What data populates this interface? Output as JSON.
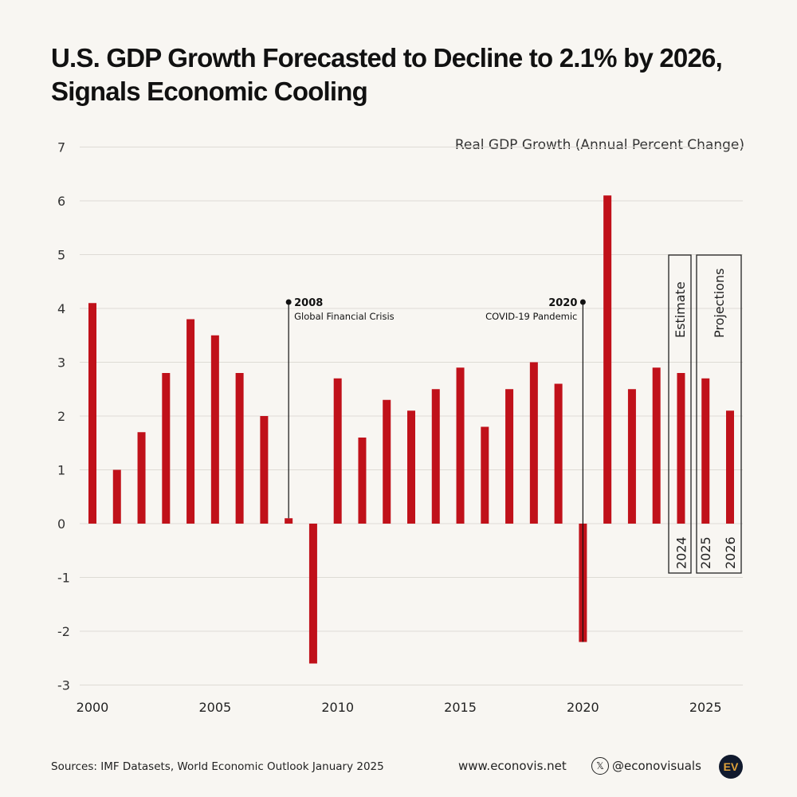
{
  "chart_data": {
    "type": "bar",
    "title": "U.S. GDP Growth Forecasted to Decline to 2.1% by 2026, Signals Economic Cooling",
    "subtitle": "Real GDP Growth (Annual Percent Change)",
    "categories": [
      2000,
      2001,
      2002,
      2003,
      2004,
      2005,
      2006,
      2007,
      2008,
      2009,
      2010,
      2011,
      2012,
      2013,
      2014,
      2015,
      2016,
      2017,
      2018,
      2019,
      2020,
      2021,
      2022,
      2023,
      2024,
      2025,
      2026
    ],
    "values": [
      4.1,
      1.0,
      1.7,
      2.8,
      3.8,
      3.5,
      2.8,
      2.0,
      0.1,
      -2.6,
      2.7,
      1.6,
      2.3,
      2.1,
      2.5,
      2.9,
      1.8,
      2.5,
      3.0,
      2.6,
      -2.2,
      6.1,
      2.5,
      2.9,
      2.8,
      2.7,
      2.1
    ],
    "ylim": [
      -3,
      7
    ],
    "yticks": [
      7,
      6,
      5,
      4,
      3,
      2,
      1,
      0,
      -1,
      -2,
      -3
    ],
    "xticks": [
      2000,
      2005,
      2010,
      2015,
      2020,
      2025
    ],
    "grid": true,
    "bar_color": "#c0111a",
    "annotations": [
      {
        "year": 2008,
        "label": "2008",
        "text": "Global Financial Crisis"
      },
      {
        "year": 2020,
        "label": "2020",
        "text": "COVID-19 Pandemic"
      }
    ],
    "boxes": [
      {
        "label": "Estimate",
        "years": [
          "2024"
        ]
      },
      {
        "label": "Projections",
        "years": [
          "2025",
          "2026"
        ]
      }
    ]
  },
  "footer": {
    "sources": "Sources: IMF Datasets, World Economic Outlook January 2025",
    "website": "www.econovis.net",
    "handle": "@econovisuals",
    "logo_text": "EV"
  }
}
